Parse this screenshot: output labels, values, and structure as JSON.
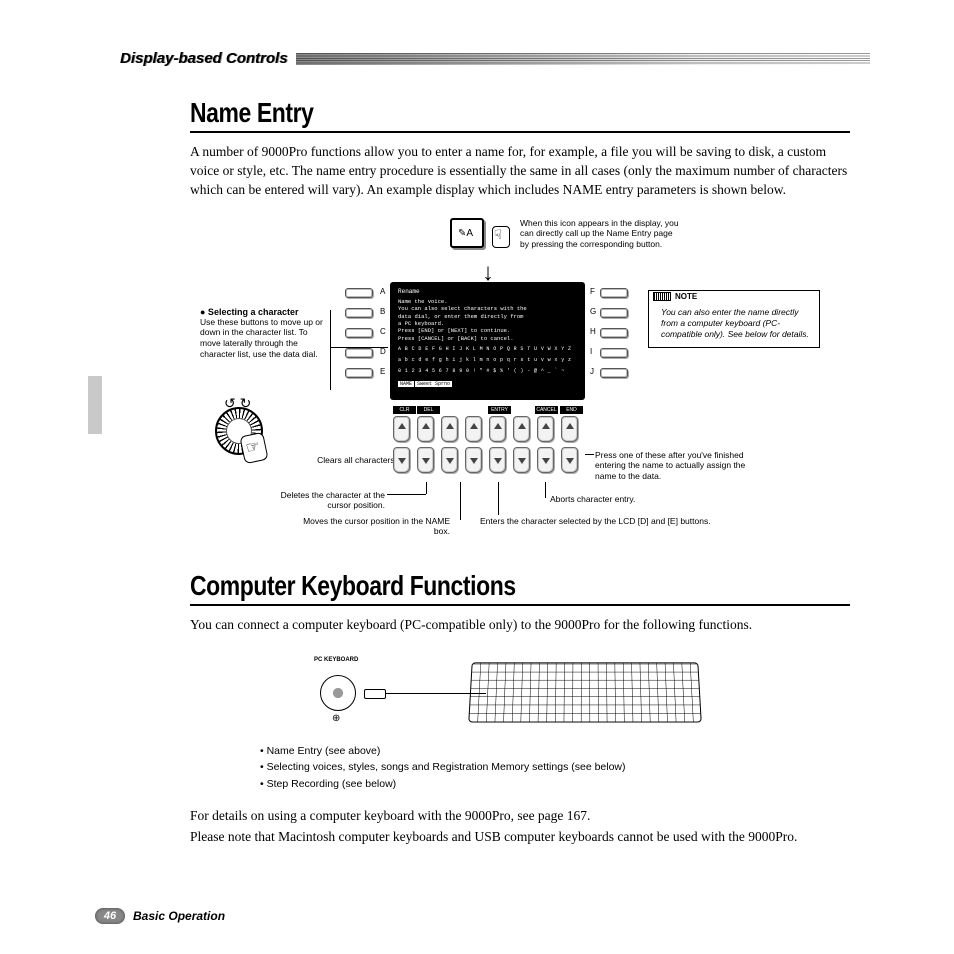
{
  "header": {
    "section_label": "Display-based Controls"
  },
  "section1": {
    "title": "Name Entry",
    "intro": "A number of 9000Pro functions allow you to enter a name for, for example, a file you will be saving to disk, a custom voice or style, etc. The name entry procedure is essentially the same in all cases (only the maximum number of characters which can be entered will vary). An example display which includes NAME entry parameters is shown below."
  },
  "diagram": {
    "icon_tip": "When this icon appears in the display, you can directly call up the Name Entry page by pressing the corresponding button.",
    "select_hdr": "● Selecting a character",
    "select_txt": "Use these buttons to move up or down in the character list. To move laterally through the character list, use the data dial.",
    "note_label": "NOTE",
    "note_txt": "You can also enter the name directly from a computer keyboard (PC-compatible only). See below for details.",
    "screen": {
      "title": "Rename",
      "l1": "Name the voice.",
      "l2": "You can also select characters with the",
      "l3": "data dial, or enter them directly from",
      "l4": "a PC keyboard.",
      "l5": "Press [END] or [NEXT] to continue.",
      "l6": "Press [CANCEL] or [BACK] to cancel.",
      "chars_u": "A B C D E F G H I J K L M N O P Q R S T U V W X Y Z",
      "chars_l": "a b c d e f g h i j k l m n o p q r s t u v w x y z",
      "chars_n": "0 1 2 3 4 5 6 7 8 9 0 ! \" # $ % ' ( ) - @ ^ _ ` ~",
      "name_lbl": "NAME",
      "name_val": "Sweet Sprno"
    },
    "side_labels": {
      "A": "A",
      "B": "B",
      "C": "C",
      "D": "D",
      "E": "E",
      "F": "F",
      "G": "G",
      "H": "H",
      "I": "I",
      "J": "J"
    },
    "fn_labels": [
      "CLR",
      "DEL",
      "",
      "",
      "ENTRY",
      "",
      "CANCEL",
      "END"
    ],
    "callouts": {
      "clr": "Clears all characters.",
      "del": "Deletes the character at the cursor position.",
      "move": "Moves the cursor position in the NAME box.",
      "entry": "Enters the character selected by the LCD [D] and [E] buttons.",
      "cancel": "Aborts character entry.",
      "end": "Press one of these after you've finished entering the name to actually assign the name to the data."
    }
  },
  "section2": {
    "title": "Computer Keyboard Functions",
    "intro": "You can connect a computer keyboard (PC-compatible only) to the 9000Pro for the following functions.",
    "port_label": "PC  KEYBOARD",
    "bullets": [
      "Name Entry (see above)",
      "Selecting voices, styles, songs and Registration Memory settings (see below)",
      "Step Recording (see below)"
    ],
    "outro1": "For details on using a computer keyboard with the 9000Pro, see page 167.",
    "outro2": "Please note that Macintosh computer keyboards and USB computer keyboards cannot be used with the 9000Pro."
  },
  "footer": {
    "page": "46",
    "label": "Basic Operation"
  },
  "colors": {
    "text": "#000000",
    "bg": "#ffffff",
    "gray": "#c9c9c9",
    "badge": "#888888"
  }
}
